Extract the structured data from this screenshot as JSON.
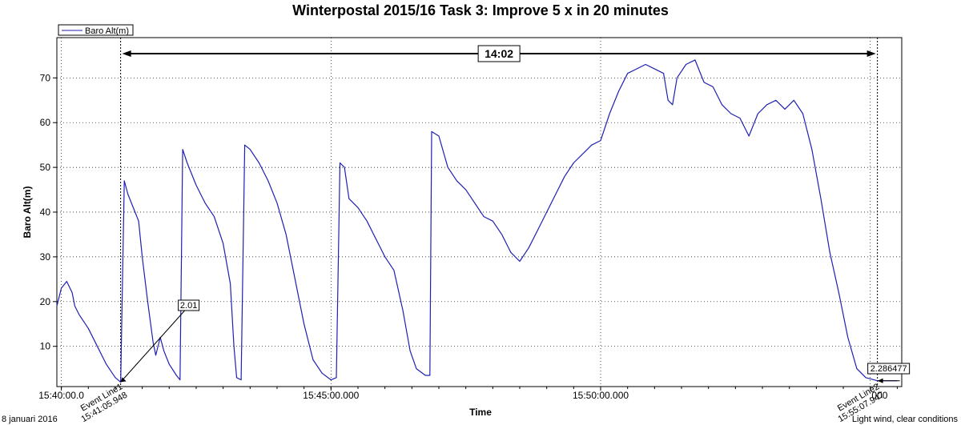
{
  "chart_data": {
    "type": "line",
    "title": "Winterpostal 2015/16 Task 3: Improve 5 x in 20 minutes",
    "xlabel": "Time",
    "ylabel": "Baro Alt(m)",
    "xlim": [
      "15:39:55",
      "15:55:35"
    ],
    "ylim": [
      1,
      79
    ],
    "y_ticks": [
      10,
      20,
      30,
      40,
      50,
      60,
      70
    ],
    "x_ticks": [
      {
        "t": "15:40:00",
        "label": "15:40:00.0"
      },
      {
        "t": "15:45:00",
        "label": "15:45:00.000"
      },
      {
        "t": "15:50:00",
        "label": "15:50:00.000"
      },
      {
        "t": "15:55:00",
        "label": ".000"
      }
    ],
    "grid": true,
    "legend": {
      "position": "top-left",
      "entries": [
        "Baro Alt(m)"
      ]
    },
    "series": [
      {
        "name": "Baro Alt(m)",
        "color": "#1f1fb4",
        "points": [
          [
            "15:39:55",
            19
          ],
          [
            "15:40:00",
            23
          ],
          [
            "15:40:06",
            24.5
          ],
          [
            "15:40:12",
            22
          ],
          [
            "15:40:15",
            19
          ],
          [
            "15:40:20",
            17
          ],
          [
            "15:40:30",
            14
          ],
          [
            "15:40:40",
            10
          ],
          [
            "15:40:50",
            6
          ],
          [
            "15:41:00",
            3
          ],
          [
            "15:41:06",
            2
          ],
          [
            "15:41:10",
            47
          ],
          [
            "15:41:14",
            44
          ],
          [
            "15:41:20",
            41
          ],
          [
            "15:41:26",
            38
          ],
          [
            "15:41:30",
            30
          ],
          [
            "15:41:36",
            20
          ],
          [
            "15:41:42",
            11
          ],
          [
            "15:41:45",
            8
          ],
          [
            "15:41:50",
            12
          ],
          [
            "15:41:54",
            9
          ],
          [
            "15:42:00",
            6
          ],
          [
            "15:42:08",
            3.5
          ],
          [
            "15:42:12",
            2.5
          ],
          [
            "15:42:15",
            54
          ],
          [
            "15:42:20",
            51
          ],
          [
            "15:42:30",
            46
          ],
          [
            "15:42:40",
            42
          ],
          [
            "15:42:50",
            39
          ],
          [
            "15:43:00",
            33
          ],
          [
            "15:43:08",
            24
          ],
          [
            "15:43:12",
            10
          ],
          [
            "15:43:15",
            3
          ],
          [
            "15:43:20",
            2.5
          ],
          [
            "15:43:24",
            55
          ],
          [
            "15:43:30",
            54
          ],
          [
            "15:43:40",
            51
          ],
          [
            "15:43:50",
            47
          ],
          [
            "15:44:00",
            42
          ],
          [
            "15:44:10",
            35
          ],
          [
            "15:44:20",
            25
          ],
          [
            "15:44:30",
            15
          ],
          [
            "15:44:40",
            7
          ],
          [
            "15:44:50",
            4
          ],
          [
            "15:45:00",
            2.5
          ],
          [
            "15:45:06",
            3
          ],
          [
            "15:45:10",
            51
          ],
          [
            "15:45:15",
            50
          ],
          [
            "15:45:20",
            43
          ],
          [
            "15:45:30",
            41
          ],
          [
            "15:45:40",
            38
          ],
          [
            "15:45:50",
            34
          ],
          [
            "15:46:00",
            30
          ],
          [
            "15:46:10",
            27
          ],
          [
            "15:46:20",
            18
          ],
          [
            "15:46:28",
            9
          ],
          [
            "15:46:35",
            5
          ],
          [
            "15:46:45",
            3.5
          ],
          [
            "15:46:50",
            3.5
          ],
          [
            "15:46:52",
            58
          ],
          [
            "15:47:00",
            57
          ],
          [
            "15:47:10",
            50
          ],
          [
            "15:47:20",
            47
          ],
          [
            "15:47:30",
            45
          ],
          [
            "15:47:40",
            42
          ],
          [
            "15:47:50",
            39
          ],
          [
            "15:48:00",
            38
          ],
          [
            "15:48:10",
            35
          ],
          [
            "15:48:20",
            31
          ],
          [
            "15:48:30",
            29
          ],
          [
            "15:48:40",
            32
          ],
          [
            "15:48:50",
            36
          ],
          [
            "15:49:00",
            40
          ],
          [
            "15:49:10",
            44
          ],
          [
            "15:49:20",
            48
          ],
          [
            "15:49:30",
            51
          ],
          [
            "15:49:40",
            53
          ],
          [
            "15:49:50",
            55
          ],
          [
            "15:50:00",
            56
          ],
          [
            "15:50:10",
            62
          ],
          [
            "15:50:20",
            67
          ],
          [
            "15:50:30",
            71
          ],
          [
            "15:50:40",
            72
          ],
          [
            "15:50:50",
            73
          ],
          [
            "15:51:00",
            72
          ],
          [
            "15:51:10",
            71
          ],
          [
            "15:51:15",
            65
          ],
          [
            "15:51:20",
            64
          ],
          [
            "15:51:25",
            70
          ],
          [
            "15:51:35",
            73
          ],
          [
            "15:51:45",
            74
          ],
          [
            "15:51:55",
            69
          ],
          [
            "15:52:05",
            68
          ],
          [
            "15:52:15",
            64
          ],
          [
            "15:52:25",
            62
          ],
          [
            "15:52:35",
            61
          ],
          [
            "15:52:45",
            57
          ],
          [
            "15:52:55",
            62
          ],
          [
            "15:53:05",
            64
          ],
          [
            "15:53:15",
            65
          ],
          [
            "15:53:25",
            63
          ],
          [
            "15:53:35",
            65
          ],
          [
            "15:53:45",
            62
          ],
          [
            "15:53:55",
            54
          ],
          [
            "15:54:05",
            43
          ],
          [
            "15:54:15",
            31
          ],
          [
            "15:54:25",
            22
          ],
          [
            "15:54:35",
            12
          ],
          [
            "15:54:45",
            5
          ],
          [
            "15:54:55",
            3
          ],
          [
            "15:55:08",
            2.3
          ],
          [
            "15:55:30",
            2.3
          ]
        ]
      }
    ],
    "annotations": {
      "event_lines": [
        {
          "t": "15:41:05.948",
          "name": "Event Line1",
          "time_label": "15:41:05.948"
        },
        {
          "t": "15:55:07.947",
          "name": "Event Line2",
          "time_label": "15:55:07.947"
        }
      ],
      "duration_label": "14:02",
      "value_labels": [
        {
          "text": "2.01",
          "t": "15:41:05.948",
          "y": 2.01
        },
        {
          "text": "2.286477",
          "t": "15:55:07.947",
          "y": 2.29
        }
      ]
    }
  },
  "footer": {
    "left": "8 januari 2016",
    "right": "Light wind, clear conditions"
  }
}
